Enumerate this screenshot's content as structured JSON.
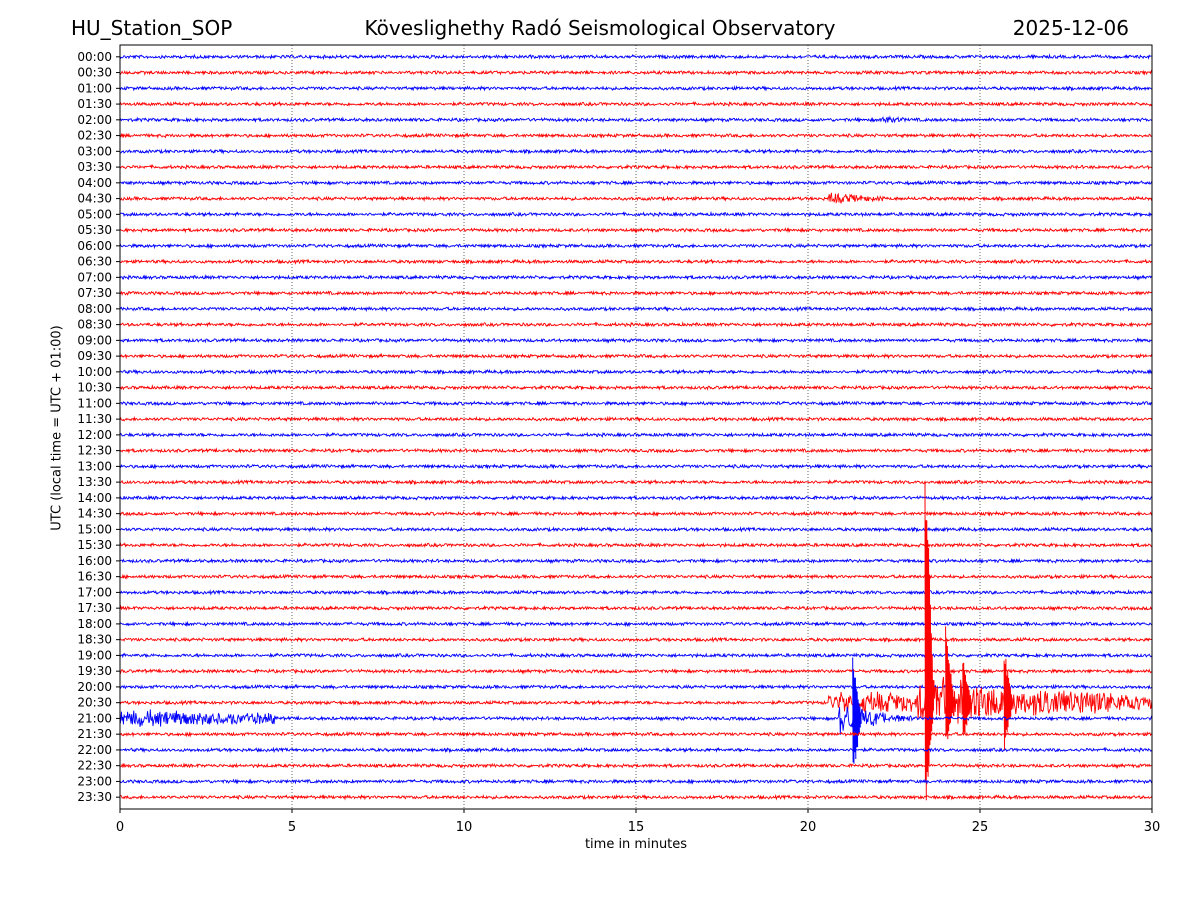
{
  "header": {
    "station": "HU_Station_SOP",
    "title": "Köveslighethy Radó Seismological Observatory",
    "date": "2025-12-06"
  },
  "chart_data": {
    "type": "line",
    "title": "Köveslighethy Radó Seismological Observatory",
    "xlabel": "time in minutes",
    "ylabel": "UTC (local time = UTC + 01:00)",
    "xlim": [
      0,
      30
    ],
    "x_ticks": [
      0,
      5,
      10,
      15,
      20,
      25,
      30
    ],
    "grid": "vertical dotted lines at 5-minute intervals",
    "row_labels": [
      "00:00",
      "00:30",
      "01:00",
      "01:30",
      "02:00",
      "02:30",
      "03:00",
      "03:30",
      "04:00",
      "04:30",
      "05:00",
      "05:30",
      "06:00",
      "06:30",
      "07:00",
      "07:30",
      "08:00",
      "08:30",
      "09:00",
      "09:30",
      "10:00",
      "10:30",
      "11:00",
      "11:30",
      "12:00",
      "12:30",
      "13:00",
      "13:30",
      "14:00",
      "14:30",
      "15:00",
      "15:30",
      "16:00",
      "16:30",
      "17:00",
      "17:30",
      "18:00",
      "18:30",
      "19:00",
      "19:30",
      "20:00",
      "20:30",
      "21:00",
      "21:30",
      "22:00",
      "22:30",
      "23:00",
      "23:30"
    ],
    "row_colors": [
      "#0000ff",
      "#ff0000"
    ],
    "events": [
      {
        "row": "02:00",
        "start_min": 22.1,
        "end_min": 22.8,
        "peak": 0.5,
        "decay_min": 0.6
      },
      {
        "row": "04:30",
        "start_min": 20.6,
        "end_min": 22.3,
        "peak": 0.8,
        "decay_min": 1.0
      },
      {
        "row": "21:00",
        "start_min": 0.0,
        "end_min": 4.5,
        "peak": 1.2,
        "decay_min": 8.0
      },
      {
        "row": "21:00",
        "start_min": 20.9,
        "end_min": 23.2,
        "peak": 3.5,
        "decay_min": 0.8
      },
      {
        "row": "20:30",
        "start_min": 20.6,
        "end_min": 30.0,
        "peak": 1.5,
        "decay_min": 30.0
      },
      {
        "row": "20:30",
        "start_min": 23.2,
        "end_min": 28.8,
        "peak": 2.8,
        "decay_min": 3.0
      }
    ],
    "spikes": [
      {
        "row": "21:00",
        "time_min": 21.3,
        "up_rows": 4.2,
        "down_rows": 3.8
      },
      {
        "row": "20:30",
        "time_min": 23.4,
        "up_rows": 17.5,
        "down_rows": 7.0
      },
      {
        "row": "20:30",
        "time_min": 24.0,
        "up_rows": 5.0,
        "down_rows": 3.0
      },
      {
        "row": "20:30",
        "time_min": 24.5,
        "up_rows": 3.0,
        "down_rows": 2.5
      },
      {
        "row": "20:30",
        "time_min": 25.7,
        "up_rows": 3.5,
        "down_rows": 3.0
      }
    ]
  }
}
